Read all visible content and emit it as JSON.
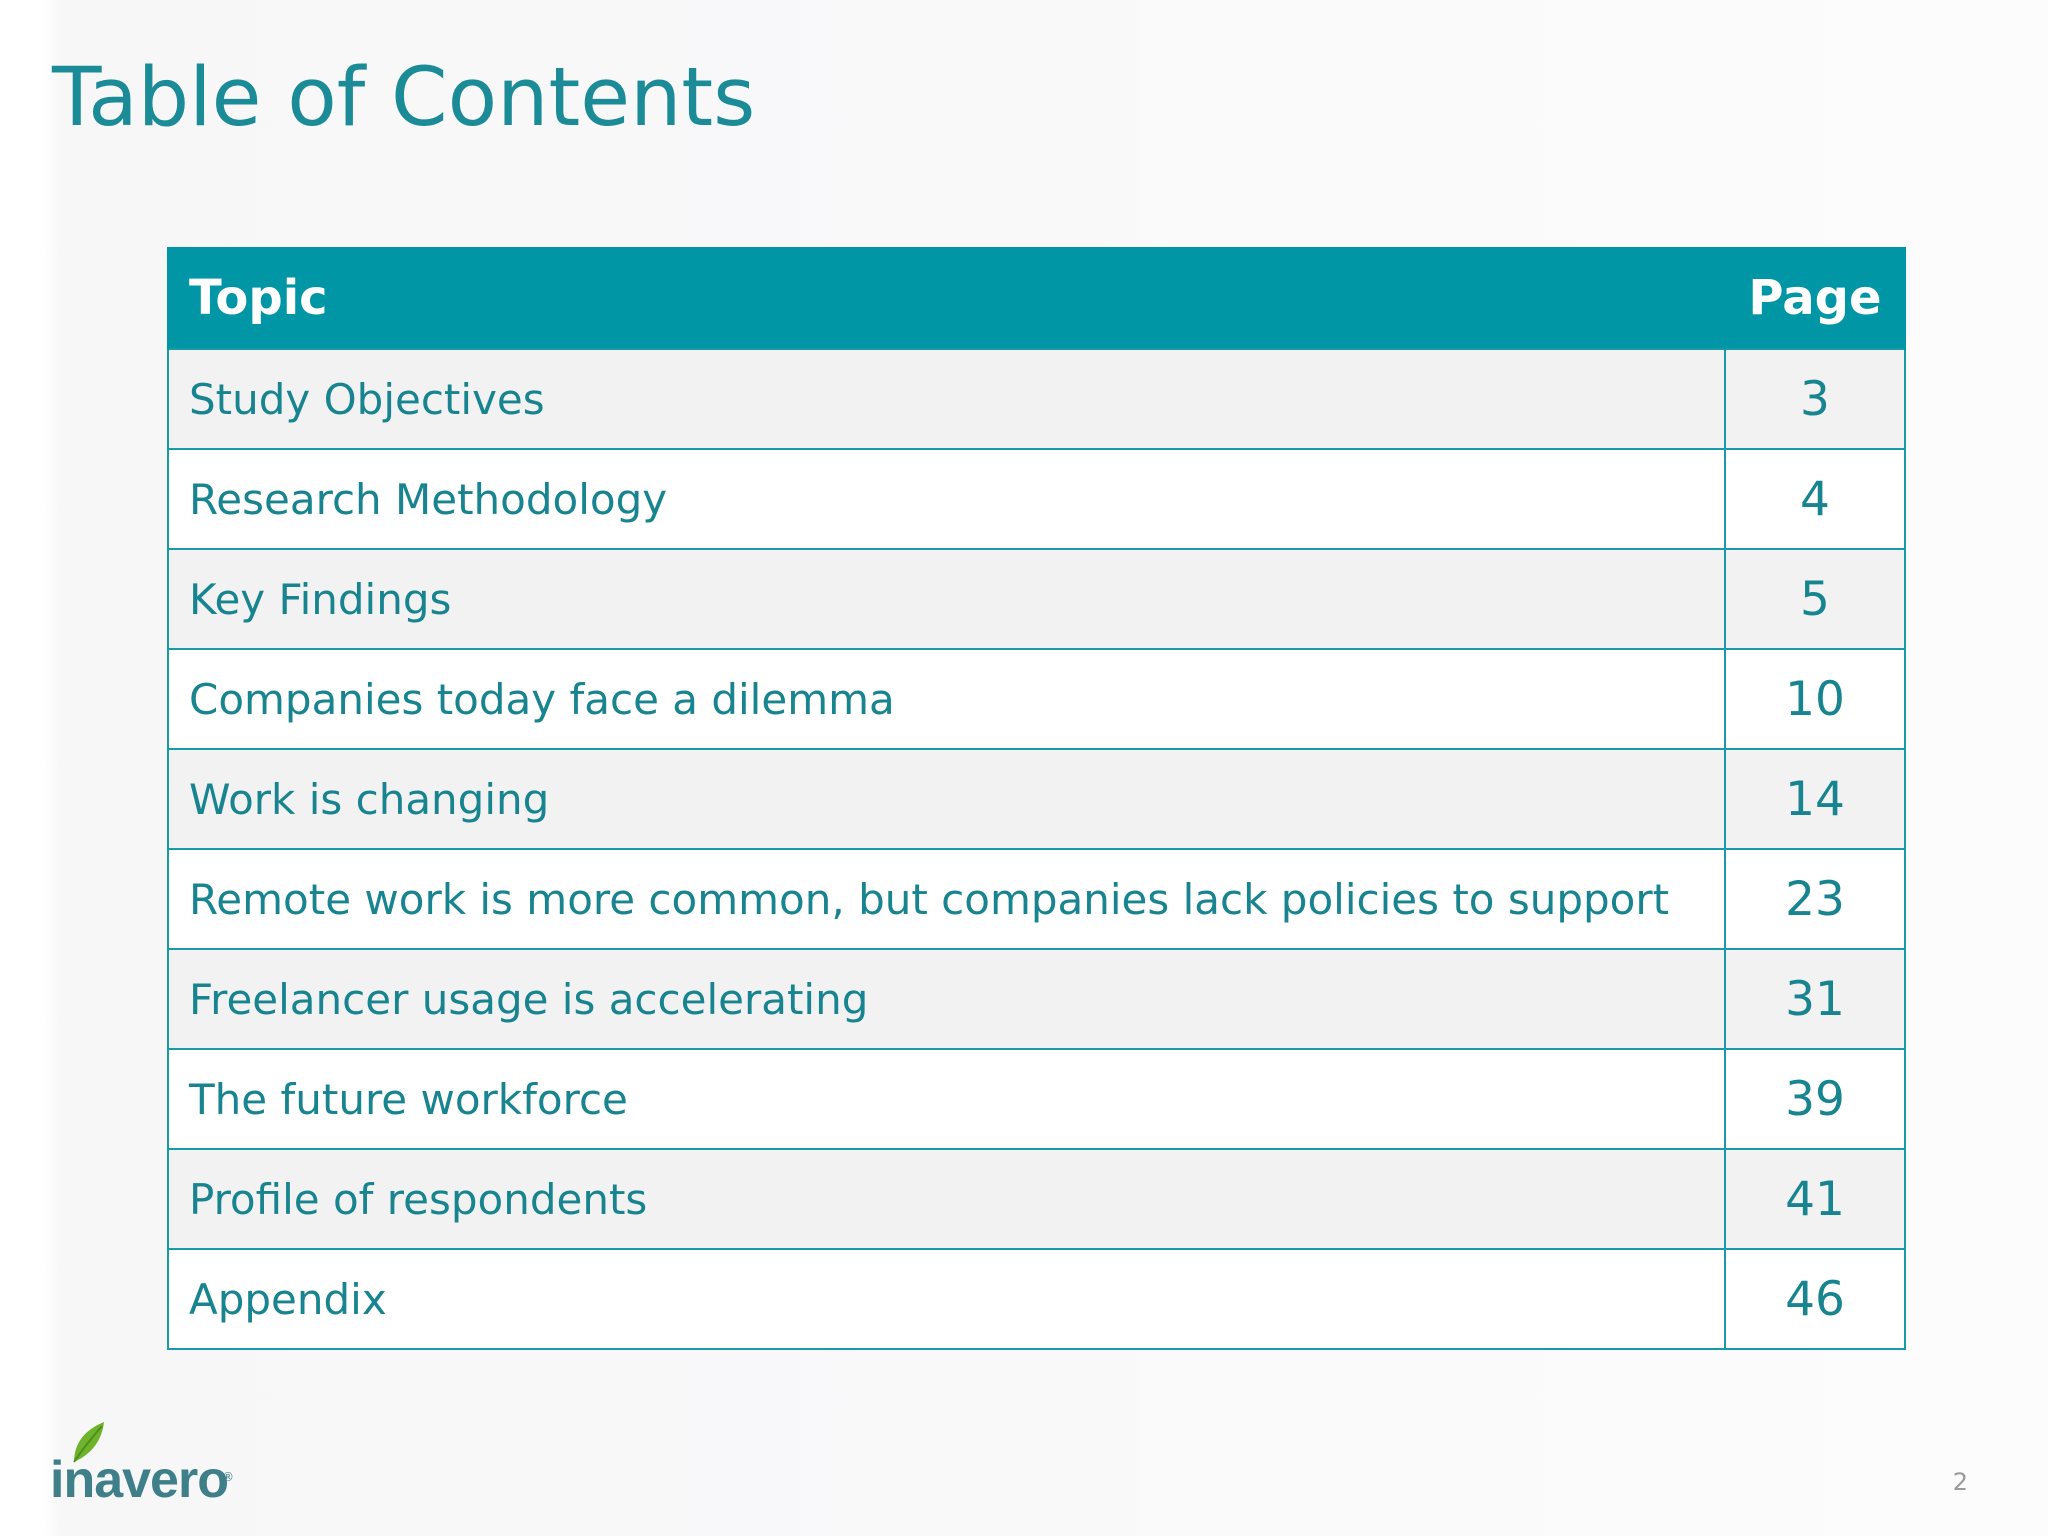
{
  "slide": {
    "title": "Table of Contents",
    "page_number": "2"
  },
  "toc": {
    "headers": {
      "topic": "Topic",
      "page": "Page"
    },
    "rows": [
      {
        "topic": "Study Objectives",
        "page": "3"
      },
      {
        "topic": "Research Methodology",
        "page": "4"
      },
      {
        "topic": "Key Findings",
        "page": "5"
      },
      {
        "topic": "Companies today face a dilemma",
        "page": "10"
      },
      {
        "topic": "Work is changing",
        "page": "14"
      },
      {
        "topic": "Remote work is more common, but companies lack policies to support",
        "page": "23"
      },
      {
        "topic": "Freelancer usage is accelerating",
        "page": "31"
      },
      {
        "topic": "The future workforce",
        "page": "39"
      },
      {
        "topic": "Profile of respondents",
        "page": "41"
      },
      {
        "topic": "Appendix",
        "page": "46"
      }
    ]
  },
  "logo": {
    "text": "inavero",
    "registered": "®",
    "icon": "leaf-icon"
  },
  "colors": {
    "accent": "#0096a6",
    "text": "#17848f",
    "border": "#1a9aa6",
    "row_alt": "#f2f2f3"
  }
}
